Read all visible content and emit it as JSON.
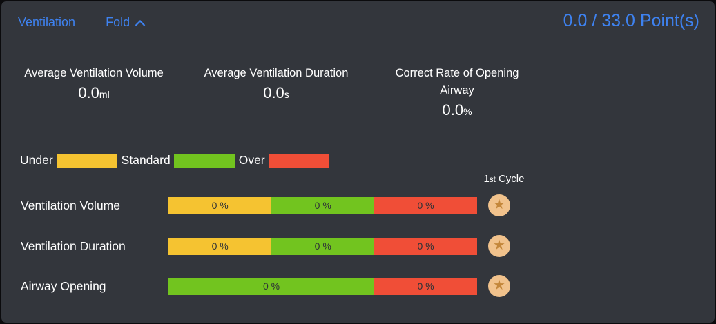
{
  "header": {
    "title": "Ventilation",
    "fold_label": "Fold",
    "points": "0.0 / 33.0 Point(s)"
  },
  "stats": [
    {
      "label": "Average Ventilation Volume",
      "value": "0.0",
      "unit": "ml"
    },
    {
      "label": "Average Ventilation Duration",
      "value": "0.0",
      "unit": "s"
    },
    {
      "label": "Correct Rate of Opening Airway",
      "value": "0.0",
      "unit": "%"
    }
  ],
  "legend": [
    {
      "label": "Under"
    },
    {
      "label": "Standard"
    },
    {
      "label": "Over"
    }
  ],
  "colors": {
    "Under": "#F5C331",
    "Standard": "#72C41F",
    "Over": "#F04E37",
    "accent_blue": "#3E82F0",
    "panel_bg": "#33363C",
    "star_circle": "#F1C28C",
    "star_glyph": "#C4873B"
  },
  "cycle": {
    "num": "1",
    "ord": "st",
    "word": " Cycle"
  },
  "rows": [
    {
      "label": "Ventilation Volume",
      "segments": [
        {
          "name": "Under",
          "text": "0 %",
          "width": 33.4
        },
        {
          "name": "Standard",
          "text": "0 %",
          "width": 33.3
        },
        {
          "name": "Over",
          "text": "0 %",
          "width": 33.3
        }
      ]
    },
    {
      "label": "Ventilation Duration",
      "segments": [
        {
          "name": "Under",
          "text": "0 %",
          "width": 33.4
        },
        {
          "name": "Standard",
          "text": "0 %",
          "width": 33.3
        },
        {
          "name": "Over",
          "text": "0 %",
          "width": 33.3
        }
      ]
    },
    {
      "label": "Airway Opening",
      "segments": [
        {
          "name": "Standard",
          "text": "0 %",
          "width": 66.7
        },
        {
          "name": "Over",
          "text": "0 %",
          "width": 33.3
        }
      ]
    }
  ],
  "chart_data": {
    "type": "bar",
    "title": "Ventilation",
    "subtitle": "1st Cycle",
    "categories": [
      "Ventilation Volume",
      "Ventilation Duration",
      "Airway Opening"
    ],
    "series": [
      {
        "name": "Under",
        "values": [
          0,
          0,
          null
        ]
      },
      {
        "name": "Standard",
        "values": [
          0,
          0,
          0
        ]
      },
      {
        "name": "Over",
        "values": [
          0,
          0,
          0
        ]
      }
    ],
    "value_unit": "%",
    "legend_position": "top-left",
    "grid": false
  }
}
